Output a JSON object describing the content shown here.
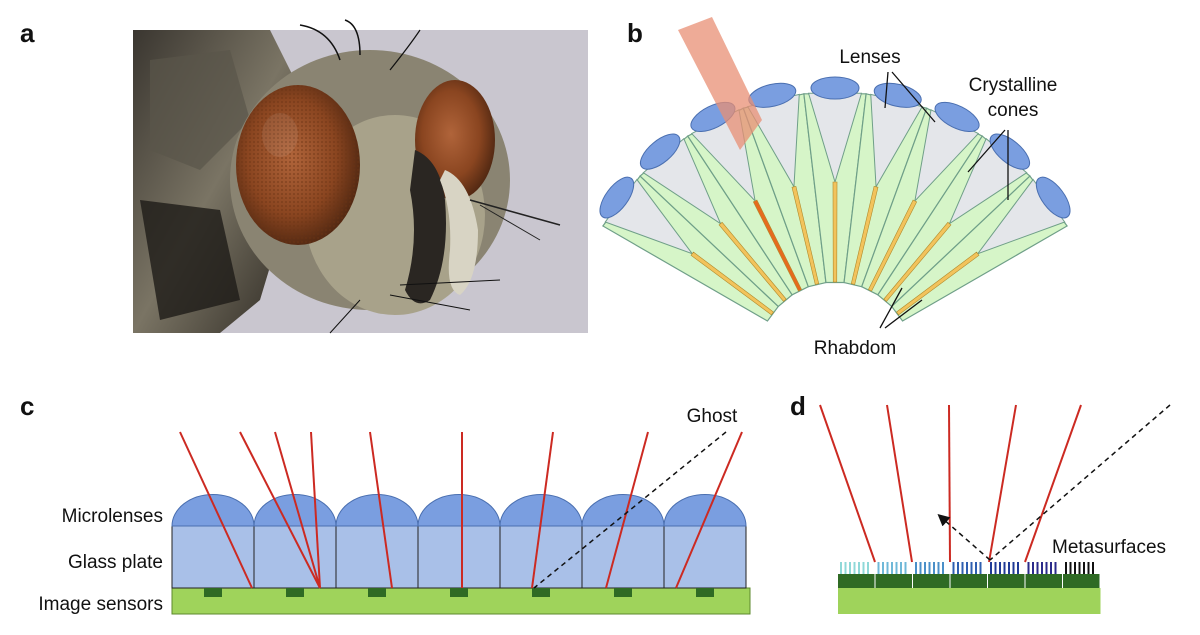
{
  "panels": {
    "a": {
      "letter": "a"
    },
    "b": {
      "letter": "b",
      "labels": {
        "lenses": "Lenses",
        "crystalline_1": "Crystalline",
        "crystalline_2": "cones",
        "rhabdom": "Rhabdom"
      }
    },
    "c": {
      "letter": "c",
      "labels": {
        "ghost": "Ghost",
        "microlenses": "Microlenses",
        "glass_plate": "Glass plate",
        "image_sensors": "Image sensors"
      }
    },
    "d": {
      "letter": "d",
      "labels": {
        "metasurfaces": "Metasurfaces"
      }
    }
  },
  "colors": {
    "lens_blue": "#7a9ee0",
    "glass_blue": "#a9c0e8",
    "cone_gray": "#e4e6ea",
    "ommatidium_green": "#d6f5c8",
    "rhabdom_yellow": "#f2c35c",
    "rhabdom_highlight": "#e66a1e",
    "light_beam": "#e88f74",
    "sensor_green": "#9fd35b",
    "pixel_dark": "#2f6a24",
    "ray_red": "#cc2a22"
  }
}
